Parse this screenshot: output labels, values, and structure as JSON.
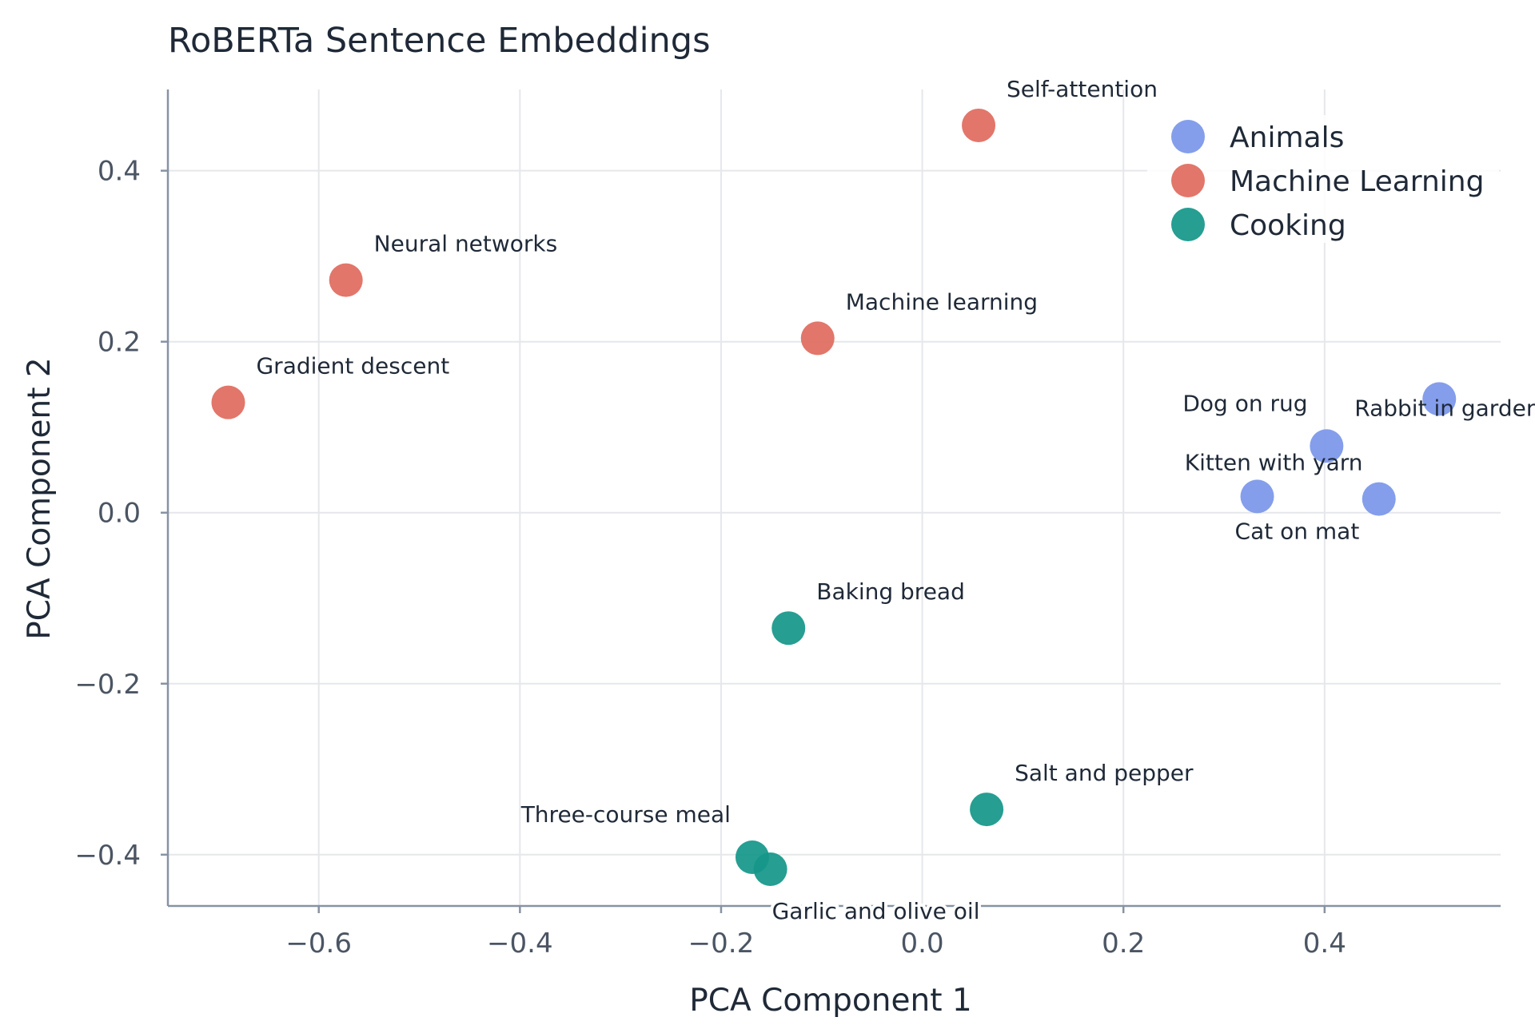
{
  "chart_data": {
    "type": "scatter",
    "title": "RoBERTa Sentence Embeddings",
    "xlabel": "PCA Component 1",
    "ylabel": "PCA Component 2",
    "xlim": [
      -0.75,
      0.575
    ],
    "ylim": [
      -0.46,
      0.495
    ],
    "xticks": [
      -0.6,
      -0.4,
      -0.2,
      0.0,
      0.2,
      0.4
    ],
    "yticks": [
      -0.4,
      -0.2,
      0.0,
      0.2,
      0.4
    ],
    "grid": true,
    "legend_position": "top-right",
    "series": [
      {
        "name": "Animals",
        "color": "#7b97ea",
        "points": [
          {
            "x": 0.333,
            "y": 0.019,
            "label": "Cat on mat"
          },
          {
            "x": 0.402,
            "y": 0.078,
            "label": "Dog on rug"
          },
          {
            "x": 0.454,
            "y": 0.016,
            "label": "Kitten with yarn"
          },
          {
            "x": 0.514,
            "y": 0.133,
            "label": "Rabbit in garden"
          }
        ]
      },
      {
        "name": "Machine Learning",
        "color": "#e06c5f",
        "points": [
          {
            "x": 0.056,
            "y": 0.453,
            "label": "Self-attention"
          },
          {
            "x": -0.573,
            "y": 0.272,
            "label": "Neural networks"
          },
          {
            "x": -0.104,
            "y": 0.204,
            "label": "Machine learning"
          },
          {
            "x": -0.69,
            "y": 0.129,
            "label": "Gradient descent"
          }
        ]
      },
      {
        "name": "Cooking",
        "color": "#15978a",
        "points": [
          {
            "x": -0.133,
            "y": -0.135,
            "label": "Baking bread"
          },
          {
            "x": 0.064,
            "y": -0.347,
            "label": "Salt and pepper"
          },
          {
            "x": -0.169,
            "y": -0.403,
            "label": "Three-course meal"
          },
          {
            "x": -0.151,
            "y": -0.417,
            "label": "Garlic and olive oil"
          }
        ]
      }
    ]
  }
}
